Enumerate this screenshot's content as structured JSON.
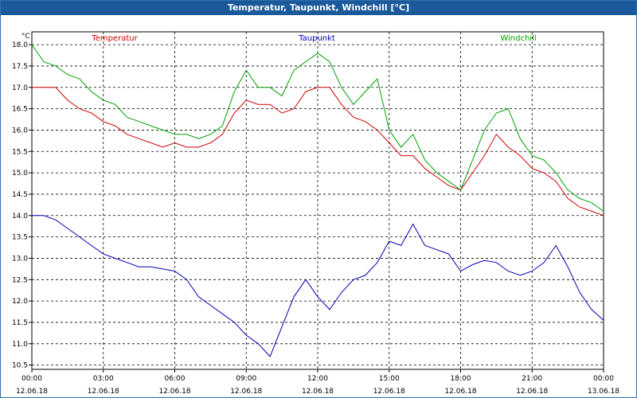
{
  "window": {
    "title": "Temperatur, Taupunkt, Windchill [°C]"
  },
  "chart_data": {
    "type": "line",
    "title": "Temperatur, Taupunkt, Windchill [°C]",
    "ylabel": "°C",
    "ylim": [
      10.4,
      18.3
    ],
    "xlim": [
      "2018-06-12 00:00",
      "2018-06-13 00:00"
    ],
    "grid": true,
    "legend_position": "top",
    "yticks": [
      "10.5",
      "11.0",
      "11.5",
      "12.0",
      "12.5",
      "13.0",
      "13.5",
      "14.0",
      "14.5",
      "15.0",
      "15.5",
      "16.0",
      "16.5",
      "17.0",
      "17.5",
      "18.0"
    ],
    "xticks": [
      {
        "time": "00:00",
        "date": "12.06.18",
        "h": 0
      },
      {
        "time": "03:00",
        "date": "12.06.18",
        "h": 3
      },
      {
        "time": "06:00",
        "date": "12.06.18",
        "h": 6
      },
      {
        "time": "09:00",
        "date": "12.06.18",
        "h": 9
      },
      {
        "time": "12:00",
        "date": "12.06.18",
        "h": 12
      },
      {
        "time": "15:00",
        "date": "12.06.18",
        "h": 15
      },
      {
        "time": "18:00",
        "date": "12.06.18",
        "h": 18
      },
      {
        "time": "21:00",
        "date": "12.06.18",
        "h": 21
      },
      {
        "time": "00:00",
        "date": "13.06.18",
        "h": 24
      }
    ],
    "series": [
      {
        "name": "Temperatur",
        "color": "#d00000",
        "x": [
          0,
          0.5,
          1,
          1.5,
          2,
          2.5,
          3,
          3.5,
          4,
          4.5,
          5,
          5.5,
          6,
          6.5,
          7,
          7.5,
          8,
          8.5,
          9,
          9.5,
          10,
          10.5,
          11,
          11.5,
          12,
          12.5,
          13,
          13.5,
          14,
          14.5,
          15,
          15.5,
          16,
          16.5,
          17,
          17.5,
          18,
          18.5,
          19,
          19.5,
          20,
          20.5,
          21,
          21.5,
          22,
          22.5,
          23,
          23.5,
          24
        ],
        "values": [
          17.0,
          17.0,
          17.0,
          16.7,
          16.5,
          16.4,
          16.2,
          16.1,
          15.9,
          15.8,
          15.7,
          15.6,
          15.7,
          15.6,
          15.6,
          15.7,
          15.9,
          16.4,
          16.7,
          16.6,
          16.6,
          16.4,
          16.5,
          16.9,
          17.0,
          17.0,
          16.6,
          16.3,
          16.2,
          16.0,
          15.7,
          15.4,
          15.4,
          15.1,
          14.9,
          14.7,
          14.6,
          15.0,
          15.4,
          15.9,
          15.6,
          15.4,
          15.1,
          15.0,
          14.8,
          14.4,
          14.2,
          14.1,
          14.0
        ]
      },
      {
        "name": "Taupunkt",
        "color": "#0000b0",
        "x": [
          0,
          0.5,
          1,
          1.5,
          2,
          2.5,
          3,
          3.5,
          4,
          4.5,
          5,
          5.5,
          6,
          6.5,
          7,
          7.5,
          8,
          8.5,
          9,
          9.5,
          10,
          10.5,
          11,
          11.5,
          12,
          12.5,
          13,
          13.5,
          14,
          14.5,
          15,
          15.5,
          16,
          16.5,
          17,
          17.5,
          18,
          18.5,
          19,
          19.5,
          20,
          20.5,
          21,
          21.5,
          22,
          22.5,
          23,
          23.5,
          24
        ],
        "values": [
          14.0,
          14.0,
          13.9,
          13.7,
          13.5,
          13.3,
          13.1,
          13.0,
          12.9,
          12.8,
          12.8,
          12.75,
          12.7,
          12.5,
          12.1,
          11.9,
          11.7,
          11.5,
          11.2,
          11.0,
          10.7,
          11.4,
          12.1,
          12.5,
          12.1,
          11.8,
          12.2,
          12.5,
          12.6,
          12.9,
          13.4,
          13.3,
          13.8,
          13.3,
          13.2,
          13.1,
          12.7,
          12.85,
          12.95,
          12.9,
          12.7,
          12.6,
          12.7,
          12.9,
          13.3,
          12.8,
          12.2,
          11.8,
          11.55
        ]
      },
      {
        "name": "Windchill",
        "color": "#00a000",
        "x": [
          0,
          0.5,
          1,
          1.5,
          2,
          2.5,
          3,
          3.5,
          4,
          4.5,
          5,
          5.5,
          6,
          6.5,
          7,
          7.5,
          8,
          8.5,
          9,
          9.5,
          10,
          10.5,
          11,
          11.5,
          12,
          12.5,
          13,
          13.5,
          14,
          14.5,
          15,
          15.5,
          16,
          16.5,
          17,
          17.5,
          18,
          18.5,
          19,
          19.5,
          20,
          20.5,
          21,
          21.5,
          22,
          22.5,
          23,
          23.5,
          24
        ],
        "values": [
          18.0,
          17.6,
          17.5,
          17.3,
          17.2,
          16.9,
          16.7,
          16.6,
          16.3,
          16.2,
          16.1,
          16.0,
          15.9,
          15.9,
          15.8,
          15.9,
          16.1,
          16.9,
          17.4,
          17.0,
          17.0,
          16.8,
          17.4,
          17.6,
          17.8,
          17.6,
          17.0,
          16.6,
          16.9,
          17.2,
          16.0,
          15.6,
          15.9,
          15.3,
          15.0,
          14.8,
          14.6,
          15.3,
          16.0,
          16.4,
          16.5,
          15.8,
          15.4,
          15.3,
          15.0,
          14.6,
          14.4,
          14.3,
          14.1
        ]
      }
    ]
  }
}
